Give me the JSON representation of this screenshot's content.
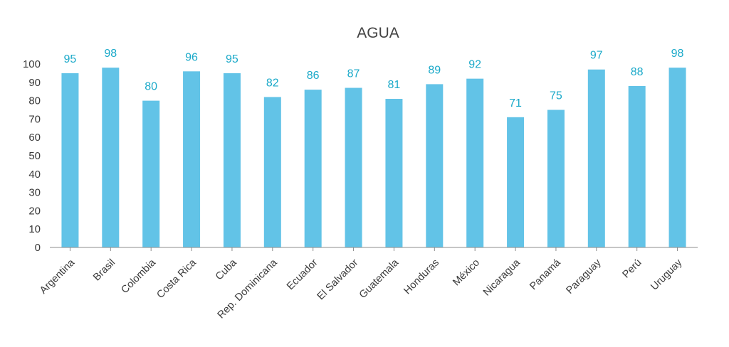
{
  "chart_data": {
    "type": "bar",
    "title": "AGUA",
    "xlabel": "",
    "ylabel": "",
    "categories": [
      "Argentina",
      "Brasil",
      "Colombia",
      "Costa Rica",
      "Cuba",
      "Rep. Dominicana",
      "Ecuador",
      "El Salvador",
      "Guatemala",
      "Honduras",
      "México",
      "Nicaragua",
      "Panamá",
      "Paraguay",
      "Perú",
      "Uruguay"
    ],
    "values": [
      95,
      98,
      80,
      96,
      95,
      82,
      86,
      87,
      81,
      89,
      92,
      71,
      75,
      97,
      88,
      98
    ],
    "ylim": [
      0,
      100
    ],
    "yticks": [
      0,
      10,
      20,
      30,
      40,
      50,
      60,
      70,
      80,
      90,
      100
    ],
    "grid": false,
    "legend": "none",
    "data_labels": true,
    "colors": {
      "bar": "#62c3e7",
      "data_label": "#1aa9c9",
      "axis": "#8c8c8c",
      "text": "#3a3a3a"
    }
  }
}
